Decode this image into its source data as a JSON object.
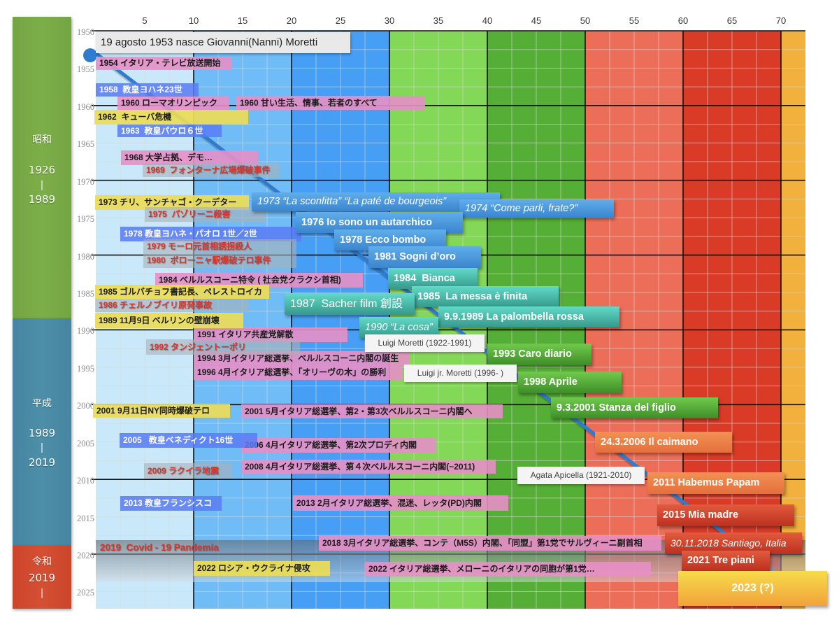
{
  "eras": [
    {
      "name": "昭和",
      "start": "1926",
      "sep": "|",
      "end": "1989"
    },
    {
      "name": "平成",
      "start": "1989",
      "sep": "|",
      "end": "2019"
    },
    {
      "name": "令和",
      "start": "2019",
      "sep": "|"
    }
  ],
  "chart_data": {
    "type": "line",
    "title": "19 agosto 1953 nasce Giovanni(Nanni) Moretti",
    "xlabel": "",
    "ylabel": "",
    "xlim": [
      0,
      72.5
    ],
    "ylim": [
      1950,
      2027.3
    ],
    "x_ticks": [
      5,
      10,
      15,
      20,
      25,
      30,
      35,
      40,
      45,
      50,
      55,
      60,
      65,
      70
    ],
    "y_ticks": [
      1950,
      1955,
      1960,
      1965,
      1970,
      1975,
      1980,
      1985,
      1990,
      1995,
      2000,
      2005,
      2010,
      2015,
      2020,
      2025
    ],
    "grid": true,
    "bands": [
      {
        "from": 0,
        "to": 10,
        "color": "#c9e9fa"
      },
      {
        "from": 10,
        "to": 20,
        "color": "#70bcf6"
      },
      {
        "from": 20,
        "to": 30,
        "color": "#469ff5"
      },
      {
        "from": 30,
        "to": 40,
        "color": "#84d858"
      },
      {
        "from": 40,
        "to": 50,
        "color": "#55ae35"
      },
      {
        "from": 50,
        "to": 60,
        "color": "#ec6e58"
      },
      {
        "from": 60,
        "to": 70,
        "color": "#da3b27"
      },
      {
        "from": 70,
        "to": 72.5,
        "color": "#f2b03c"
      }
    ],
    "series": [
      {
        "color": "#2f7bd0",
        "points": [
          {
            "x": 0,
            "y": 1953
          },
          {
            "x": 70,
            "y": 2023
          }
        ]
      }
    ],
    "annotations": {
      "news": [
        "1954 イタリア・テレビ放送開始",
        "1960 ローマオリンピック",
        "1960 甘い生活、情事、若者のすべて",
        "1968 大学占拠、デモ…",
        "1984 ベルルスコーニ特令 ( 社会党クラクシ首相)",
        "1991 イタリア共産党解散",
        "1994 3月イタリア総選挙、ベルルスコーニ内閣の誕生",
        "1996 4月イタリア総選挙、「オリーヴの木」の勝利",
        "2001 5月イタリア総選挙、第2・第3次ベルルスコーニ内閣へ",
        "2006 4月イタリア総選挙、第2次プロディ内閣",
        "2008 4月イタリア総選挙、第４次ベルルスコーニ内閣(~2011)",
        "2013 2月イタリア総選挙、混迷、レッタ(PD)内閣",
        "2018 3月イタリア総選挙、コンテ（M5S）内閣、「同盟」第1党でサルヴィーニ副首相",
        "2022 イタリア総選挙、メローニのイタリアの同胞が第1党…"
      ],
      "popes": [
        "1958  教皇ヨハネ23世",
        "1963  教皇パウロ６世",
        "1978 教皇ヨハネ・パオロ 1世／2世",
        "2005   教皇ベネディクト16世",
        "2013 教皇フランシスコ"
      ],
      "world": [
        "1962  キューバ危機",
        "1973 チリ、サンチャゴ・クーデター",
        "1985 ゴルバチョフ書記長、ペレストロイカ",
        "1989 11月9日 ベルリンの壁崩壊",
        "2001 9月11日NY同時爆破テロ",
        "2022 ロシア・ウクライナ侵攻"
      ],
      "tragedies": [
        "1969  フォンターナ広場爆破事件",
        "1975  パゾリーニ殺害",
        "1979 モーロ元首相誘拐殺人",
        "1980  ボローニャ駅爆破テロ事件",
        "1986 チェルノブイリ原発事故",
        "1992 タンジェントーポリ",
        "2009 ラクイラ地震"
      ],
      "pandemic": "2019  Covid - 19 Pandemia",
      "films": [
        "1973 “La sconfitta” “La paté de bourgeois”",
        "1974 “Come parli, frate?”",
        "1976 Io sono un autarchico",
        "1978 Ecco bombo",
        "1981 Sogni d’oro",
        "1984  Bianca",
        "1985  La messa è finita",
        "1987  Sacher film 創設",
        "9.9.1989 La palombella rossa",
        "1990 “La cosa”",
        "1993 Caro diario",
        "1998 Aprile",
        "9.3.2001 Stanza del figlio",
        "24.3.2006 Il caimano",
        "2011 Habemus Papam",
        "2015 Mia madre",
        "30.11.2018 Santiago, Italia",
        "2021 Tre piani",
        "2023 (?)"
      ],
      "family": [
        "Luigi Moretti (1922-1991)",
        "Luigi jr. Moretti (1996- )",
        "Agata Apicella (1921-2010)"
      ]
    }
  }
}
